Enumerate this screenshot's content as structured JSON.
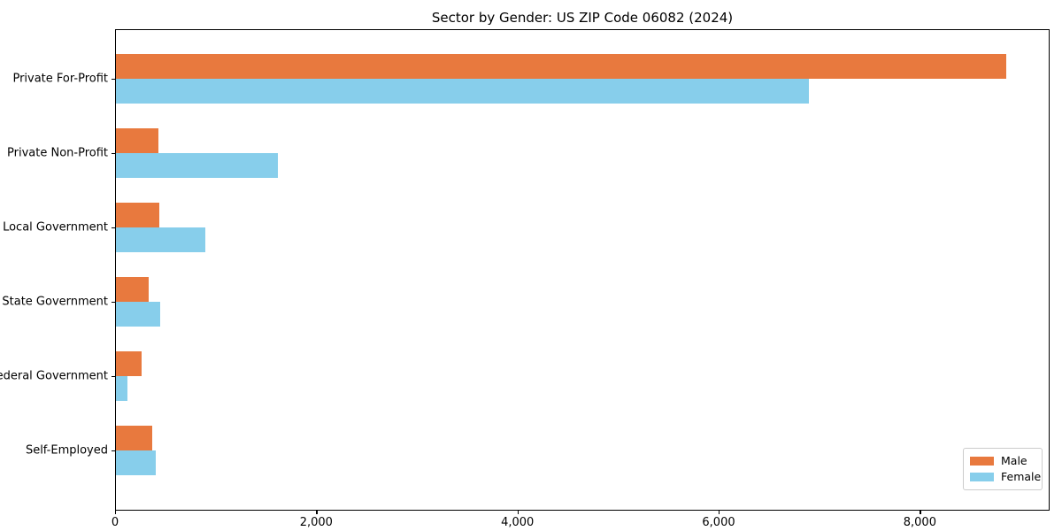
{
  "chart_data": {
    "type": "bar",
    "orientation": "horizontal",
    "title": "Sector by Gender: US ZIP Code 06082 (2024)",
    "categories": [
      "Private For-Profit",
      "Private Non-Profit",
      "Local Government",
      "State Government",
      "Federal Government",
      "Self-Employed"
    ],
    "series": [
      {
        "name": "Male",
        "color": "#e8793e",
        "values": [
          8850,
          420,
          430,
          325,
          255,
          360
        ]
      },
      {
        "name": "Female",
        "color": "#87ceeb",
        "values": [
          6890,
          1610,
          890,
          440,
          115,
          400
        ]
      }
    ],
    "xlim": [
      0,
      9290
    ],
    "xticks": [
      {
        "value": 0,
        "label": "0"
      },
      {
        "value": 2000,
        "label": "2,000"
      },
      {
        "value": 4000,
        "label": "4,000"
      },
      {
        "value": 6000,
        "label": "6,000"
      },
      {
        "value": 8000,
        "label": "8,000"
      }
    ],
    "grid": false,
    "legend": {
      "position": "lower-right"
    }
  }
}
